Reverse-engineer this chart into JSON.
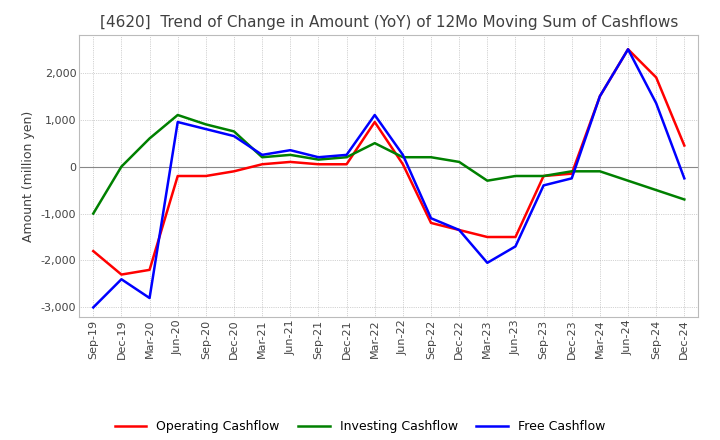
{
  "title": "[4620]  Trend of Change in Amount (YoY) of 12Mo Moving Sum of Cashflows",
  "ylabel": "Amount (million yen)",
  "x_labels": [
    "Sep-19",
    "Dec-19",
    "Mar-20",
    "Jun-20",
    "Sep-20",
    "Dec-20",
    "Mar-21",
    "Jun-21",
    "Sep-21",
    "Dec-21",
    "Mar-22",
    "Jun-22",
    "Sep-22",
    "Dec-22",
    "Mar-23",
    "Jun-23",
    "Sep-23",
    "Dec-23",
    "Mar-24",
    "Jun-24",
    "Sep-24",
    "Dec-24"
  ],
  "operating": [
    -1800,
    -2300,
    -2200,
    -200,
    -200,
    -100,
    50,
    100,
    50,
    50,
    950,
    50,
    -1200,
    -1350,
    -1500,
    -1500,
    -200,
    -150,
    1500,
    2500,
    1900,
    450
  ],
  "investing": [
    -1000,
    0,
    600,
    1100,
    900,
    750,
    200,
    250,
    150,
    200,
    500,
    200,
    200,
    100,
    -300,
    -200,
    -200,
    -100,
    -100,
    -300,
    -500,
    -700
  ],
  "free": [
    -3000,
    -2400,
    -2800,
    950,
    800,
    650,
    250,
    350,
    200,
    250,
    1100,
    250,
    -1100,
    -1350,
    -2050,
    -1700,
    -400,
    -250,
    1500,
    2500,
    1350,
    -250
  ],
  "operating_color": "#FF0000",
  "investing_color": "#008000",
  "free_color": "#0000FF",
  "ylim": [
    -3200,
    2800
  ],
  "yticks": [
    -3000,
    -2000,
    -1000,
    0,
    1000,
    2000
  ],
  "background_color": "#FFFFFF",
  "grid_color": "#AAAAAA",
  "title_color": "#404040",
  "title_fontsize": 11,
  "ylabel_fontsize": 9,
  "tick_fontsize": 8,
  "legend_fontsize": 9,
  "line_width": 1.8
}
